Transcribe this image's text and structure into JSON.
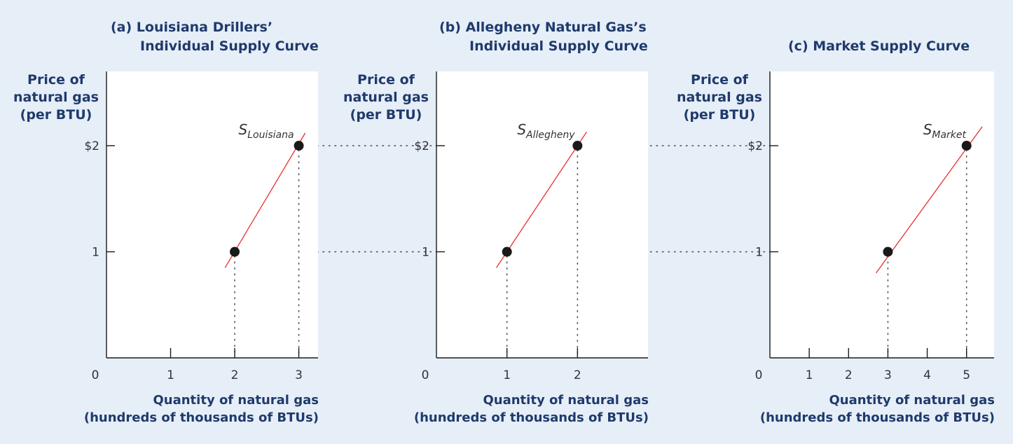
{
  "colors": {
    "background": "#e6eef8",
    "plot_background": "#ffffff",
    "text": "#1f3a6b",
    "curve": "#e8312f",
    "point": "#1a1a1a"
  },
  "chart_data": [
    {
      "type": "line",
      "panel": "a",
      "title_line1": "(a) Louisiana Drillers’",
      "title_line2": "Individual Supply Curve",
      "ylabel_lines": [
        "Price of",
        "natural gas",
        "(per BTU)"
      ],
      "xlabel_lines": [
        "Quantity of natural gas",
        "(hundreds of thousands of BTUs)"
      ],
      "x_ticks": [
        0,
        1,
        2,
        3
      ],
      "y_ticks": [
        {
          "value": 1,
          "label": "1"
        },
        {
          "value": 2,
          "label": "$2"
        }
      ],
      "xlim": [
        0,
        3.3
      ],
      "ylim": [
        0,
        2.7
      ],
      "curve_label": {
        "main": "S",
        "sub": "Louisiana"
      },
      "curve": {
        "x": [
          1.85,
          3.1
        ],
        "y": [
          0.85,
          2.12
        ]
      },
      "points": [
        {
          "x": 2,
          "y": 1
        },
        {
          "x": 3,
          "y": 2
        }
      ]
    },
    {
      "type": "line",
      "panel": "b",
      "title_line1": "(b) Allegheny Natural Gas’s",
      "title_line2": "Individual Supply Curve",
      "ylabel_lines": [
        "Price of",
        "natural gas",
        "(per BTU)"
      ],
      "xlabel_lines": [
        "Quantity of natural gas",
        "(hundreds of thousands of BTUs)"
      ],
      "x_ticks": [
        0,
        1,
        2
      ],
      "y_ticks": [
        {
          "value": 1,
          "label": "1"
        },
        {
          "value": 2,
          "label": "$2"
        }
      ],
      "xlim": [
        0,
        3
      ],
      "ylim": [
        0,
        2.7
      ],
      "curve_label": {
        "main": "S",
        "sub": "Allegheny"
      },
      "curve": {
        "x": [
          0.85,
          2.13
        ],
        "y": [
          0.85,
          2.13
        ]
      },
      "points": [
        {
          "x": 1,
          "y": 1
        },
        {
          "x": 2,
          "y": 2
        }
      ]
    },
    {
      "type": "line",
      "panel": "c",
      "title_line1": "(c) Market Supply Curve",
      "title_line2": "",
      "ylabel_lines": [
        "Price of",
        "natural gas",
        "(per BTU)"
      ],
      "xlabel_lines": [
        "Quantity of natural gas",
        "(hundreds of thousands of BTUs)"
      ],
      "x_ticks": [
        0,
        1,
        2,
        3,
        4,
        5
      ],
      "y_ticks": [
        {
          "value": 1,
          "label": "1"
        },
        {
          "value": 2,
          "label": "$2"
        }
      ],
      "xlim": [
        0,
        5.7
      ],
      "ylim": [
        0,
        2.7
      ],
      "curve_label": {
        "main": "S",
        "sub": "Market"
      },
      "curve": {
        "x": [
          2.7,
          5.4
        ],
        "y": [
          0.8,
          2.18
        ]
      },
      "points": [
        {
          "x": 3,
          "y": 1
        },
        {
          "x": 5,
          "y": 2
        }
      ]
    }
  ]
}
